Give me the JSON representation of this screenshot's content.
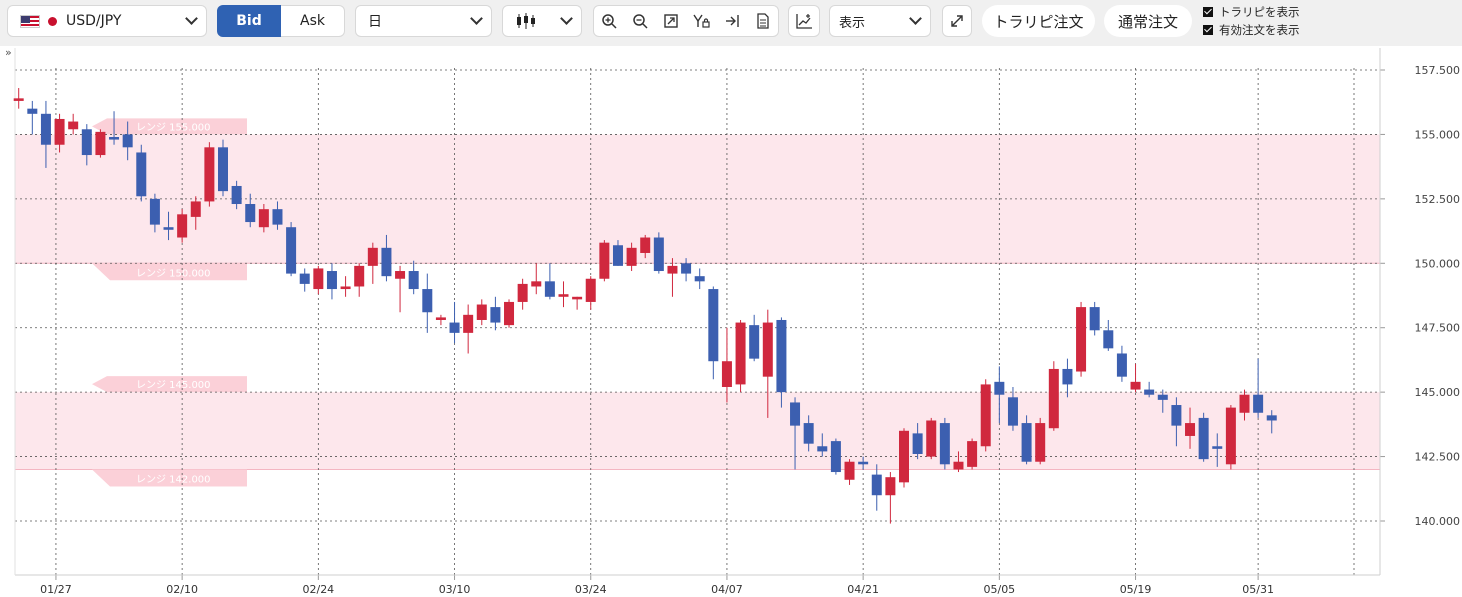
{
  "toolbar": {
    "symbol": "USD/JPY",
    "bid_label": "Bid",
    "ask_label": "Ask",
    "period": "日",
    "display_label": "表示",
    "trap_order_label": "トラリピ注文",
    "normal_order_label": "通常注文",
    "show_trap_label": "トラリピを表示",
    "show_orders_label": "有効注文を表示",
    "collapse_label": "»"
  },
  "colors": {
    "up": "#d0283e",
    "down": "#3c5fb0",
    "range": "#fde7ec",
    "bid": "#2f62b3"
  },
  "chart_data": {
    "type": "candlestick",
    "ylim": [
      138.6,
      158.4
    ],
    "yticks": [
      "157.500",
      "155.000",
      "152.500",
      "150.000",
      "147.500",
      "145.000",
      "142.500",
      "140.000"
    ],
    "ytick_values": [
      157.5,
      155,
      152.5,
      150,
      147.5,
      145,
      142.5,
      140
    ],
    "xticks": [
      "01/27",
      "02/10",
      "02/24",
      "03/10",
      "03/24",
      "04/07",
      "04/21",
      "05/05",
      "05/19",
      "05/31"
    ],
    "xtick_index": [
      2,
      12,
      22,
      32,
      42,
      52,
      62,
      72,
      82,
      91
    ],
    "ranges": [
      {
        "from": 150.0,
        "to": 155.0,
        "top_label": "レンジ 155.000",
        "bottom_label": "レンジ 150.000"
      },
      {
        "from": 142.0,
        "to": 145.0,
        "top_label": "レンジ 145.000",
        "bottom_label": "レンジ 142.000"
      }
    ],
    "ohlc": [
      [
        156.3,
        156.8,
        156.0,
        156.4
      ],
      [
        156.0,
        156.3,
        155.0,
        155.8
      ],
      [
        155.8,
        156.3,
        153.7,
        154.6
      ],
      [
        154.6,
        155.8,
        154.3,
        155.6
      ],
      [
        155.2,
        155.8,
        155.0,
        155.5
      ],
      [
        155.2,
        155.4,
        153.8,
        154.2
      ],
      [
        154.2,
        155.2,
        154.1,
        155.1
      ],
      [
        154.9,
        155.9,
        154.6,
        154.8
      ],
      [
        155.0,
        155.5,
        154.0,
        154.5
      ],
      [
        154.3,
        154.6,
        152.4,
        152.6
      ],
      [
        152.5,
        152.7,
        151.2,
        151.5
      ],
      [
        151.4,
        152.0,
        150.9,
        151.3
      ],
      [
        151.0,
        152.1,
        150.8,
        151.9
      ],
      [
        151.8,
        152.6,
        151.3,
        152.4
      ],
      [
        152.4,
        154.7,
        152.2,
        154.5
      ],
      [
        154.5,
        154.8,
        152.6,
        152.8
      ],
      [
        153.0,
        153.2,
        152.1,
        152.3
      ],
      [
        152.3,
        152.7,
        151.4,
        151.6
      ],
      [
        151.4,
        152.3,
        151.2,
        152.1
      ],
      [
        152.1,
        152.4,
        151.3,
        151.5
      ],
      [
        151.4,
        151.6,
        149.5,
        149.6
      ],
      [
        149.6,
        149.8,
        148.9,
        149.2
      ],
      [
        149.0,
        149.9,
        148.8,
        149.8
      ],
      [
        149.7,
        150.0,
        148.6,
        149.0
      ],
      [
        149.0,
        149.5,
        148.7,
        149.1
      ],
      [
        149.1,
        150.0,
        148.7,
        149.9
      ],
      [
        149.9,
        150.8,
        149.2,
        150.6
      ],
      [
        150.6,
        151.1,
        149.3,
        149.5
      ],
      [
        149.4,
        149.9,
        148.1,
        149.7
      ],
      [
        149.7,
        150.1,
        148.8,
        149.0
      ],
      [
        149.0,
        149.6,
        147.3,
        148.1
      ],
      [
        147.8,
        148.0,
        147.6,
        147.9
      ],
      [
        147.7,
        148.5,
        146.9,
        147.3
      ],
      [
        147.3,
        148.4,
        146.5,
        148.0
      ],
      [
        147.8,
        148.6,
        147.6,
        148.4
      ],
      [
        148.3,
        148.7,
        147.4,
        147.7
      ],
      [
        147.6,
        148.6,
        147.5,
        148.5
      ],
      [
        148.5,
        149.4,
        148.2,
        149.2
      ],
      [
        149.1,
        150.0,
        148.8,
        149.3
      ],
      [
        149.3,
        150.0,
        148.6,
        148.7
      ],
      [
        148.7,
        149.3,
        148.3,
        148.8
      ],
      [
        148.6,
        148.7,
        148.2,
        148.7
      ],
      [
        148.5,
        149.5,
        148.2,
        149.4
      ],
      [
        149.4,
        150.9,
        149.3,
        150.8
      ],
      [
        150.7,
        150.9,
        149.9,
        149.9
      ],
      [
        149.9,
        150.8,
        149.7,
        150.6
      ],
      [
        150.4,
        151.1,
        150.2,
        151.0
      ],
      [
        151.0,
        151.2,
        149.6,
        149.7
      ],
      [
        149.6,
        150.2,
        148.7,
        149.9
      ],
      [
        150.0,
        150.2,
        149.3,
        149.6
      ],
      [
        149.5,
        149.8,
        149.0,
        149.3
      ],
      [
        149.0,
        149.1,
        145.5,
        146.2
      ],
      [
        145.2,
        147.5,
        144.6,
        146.2
      ],
      [
        145.3,
        147.8,
        145.0,
        147.7
      ],
      [
        147.6,
        148.0,
        146.2,
        146.3
      ],
      [
        145.6,
        148.2,
        144.0,
        147.7
      ],
      [
        147.8,
        147.9,
        144.4,
        145.0
      ],
      [
        144.6,
        144.8,
        142.0,
        143.7
      ],
      [
        143.8,
        144.1,
        142.7,
        143.0
      ],
      [
        142.9,
        143.4,
        142.5,
        142.7
      ],
      [
        143.1,
        143.2,
        141.8,
        141.9
      ],
      [
        141.6,
        142.4,
        141.4,
        142.3
      ],
      [
        142.3,
        142.5,
        142.0,
        142.2
      ],
      [
        141.8,
        142.2,
        140.4,
        141.0
      ],
      [
        141.0,
        141.9,
        139.9,
        141.7
      ],
      [
        141.5,
        143.6,
        141.3,
        143.5
      ],
      [
        143.4,
        143.8,
        142.4,
        142.6
      ],
      [
        142.5,
        144.0,
        142.4,
        143.9
      ],
      [
        143.8,
        144.0,
        142.0,
        142.2
      ],
      [
        142.0,
        142.7,
        141.9,
        142.3
      ],
      [
        142.1,
        143.2,
        142.0,
        143.1
      ],
      [
        142.9,
        145.5,
        142.7,
        145.3
      ],
      [
        145.4,
        146.0,
        143.8,
        144.9
      ],
      [
        144.8,
        145.2,
        143.5,
        143.7
      ],
      [
        143.8,
        144.1,
        142.2,
        142.3
      ],
      [
        142.3,
        144.0,
        142.2,
        143.8
      ],
      [
        143.6,
        146.2,
        143.5,
        145.9
      ],
      [
        145.9,
        146.3,
        144.8,
        145.3
      ],
      [
        145.8,
        148.5,
        145.6,
        148.3
      ],
      [
        148.3,
        148.5,
        147.2,
        147.4
      ],
      [
        147.4,
        147.8,
        146.6,
        146.7
      ],
      [
        146.5,
        146.8,
        145.4,
        145.6
      ],
      [
        145.1,
        146.1,
        145.0,
        145.4
      ],
      [
        145.1,
        145.4,
        144.8,
        144.9
      ],
      [
        144.9,
        145.1,
        144.2,
        144.7
      ],
      [
        144.5,
        144.8,
        142.9,
        143.7
      ],
      [
        143.3,
        144.4,
        142.8,
        143.8
      ],
      [
        144.0,
        144.2,
        142.3,
        142.4
      ],
      [
        142.9,
        143.4,
        142.1,
        142.8
      ],
      [
        142.2,
        144.5,
        142.0,
        144.4
      ],
      [
        144.2,
        145.1,
        143.9,
        144.9
      ],
      [
        144.9,
        146.3,
        144.0,
        144.2
      ],
      [
        144.1,
        144.3,
        143.4,
        143.9
      ]
    ]
  }
}
